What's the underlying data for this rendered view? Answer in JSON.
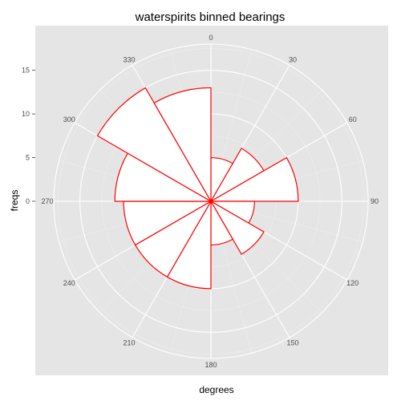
{
  "chart_data": {
    "type": "bar",
    "coord": "polar",
    "title": "waterspirits binned bearings",
    "xlabel": "degrees",
    "ylabel": "freqs",
    "categories": [
      0,
      30,
      60,
      90,
      120,
      150,
      180,
      210,
      240,
      270,
      300,
      330
    ],
    "theta_ticks": [
      "0",
      "30",
      "60",
      "90",
      "120",
      "150",
      "180",
      "210",
      "240",
      "270",
      "300",
      "330"
    ],
    "bin_width_degrees": 30,
    "values": [
      5,
      7,
      10,
      5,
      7,
      5,
      10,
      10,
      10,
      11,
      15,
      13
    ],
    "ylim": [
      0,
      18
    ],
    "y_ticks": [
      "0",
      "5",
      "10",
      "15"
    ],
    "y_tick_values": [
      0,
      5,
      10,
      15
    ],
    "grid": true,
    "colors": {
      "panel_background": "#e5e5e5",
      "grid": "#ffffff",
      "bar_fill": "#ffffff",
      "bar_outline": "#ff0000"
    }
  }
}
